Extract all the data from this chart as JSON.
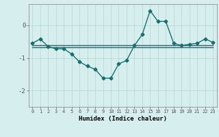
{
  "xlabel": "Humidex (Indice chaleur)",
  "ylabel": "",
  "background_color": "#d6eeee",
  "grid_color": "#b8d8d8",
  "line_color": "#1a6e6e",
  "x_values": [
    0,
    1,
    2,
    3,
    4,
    5,
    6,
    7,
    8,
    9,
    10,
    11,
    12,
    13,
    14,
    15,
    16,
    17,
    18,
    19,
    20,
    21,
    22,
    23
  ],
  "series1": [
    -0.55,
    -0.42,
    -0.65,
    -0.72,
    -0.72,
    -0.88,
    -1.12,
    -1.25,
    -1.35,
    -1.62,
    -1.62,
    -1.18,
    -1.08,
    -0.62,
    -0.28,
    0.45,
    0.12,
    0.12,
    -0.55,
    -0.62,
    -0.58,
    -0.55,
    -0.42,
    -0.52
  ],
  "flat_line": [
    -0.6,
    -0.6,
    -0.6,
    -0.6,
    -0.6,
    -0.6,
    -0.6,
    -0.6,
    -0.6,
    -0.6,
    -0.6,
    -0.6,
    -0.6,
    -0.6,
    -0.6,
    -0.6,
    -0.6,
    -0.6,
    -0.6,
    -0.6,
    -0.6,
    -0.6,
    -0.6,
    -0.6
  ],
  "flat_line2": [
    -0.68,
    -0.68,
    -0.68,
    -0.68,
    -0.68,
    -0.68,
    -0.68,
    -0.68,
    -0.68,
    -0.68,
    -0.68,
    -0.68,
    -0.68,
    -0.68,
    -0.68,
    -0.68,
    -0.68,
    -0.68,
    -0.68,
    -0.68,
    -0.68,
    -0.68,
    -0.68,
    -0.68
  ],
  "ylim": [
    -2.5,
    0.65
  ],
  "xlim": [
    -0.5,
    23.5
  ],
  "yticks": [
    0,
    -1,
    -2
  ],
  "xticks": [
    0,
    1,
    2,
    3,
    4,
    5,
    6,
    7,
    8,
    9,
    10,
    11,
    12,
    13,
    14,
    15,
    16,
    17,
    18,
    19,
    20,
    21,
    22,
    23
  ],
  "xtick_labels": [
    "0",
    "1",
    "2",
    "3",
    "4",
    "5",
    "6",
    "7",
    "8",
    "9",
    "10",
    "11",
    "12",
    "13",
    "14",
    "15",
    "16",
    "17",
    "18",
    "19",
    "20",
    "21",
    "22",
    "23"
  ],
  "marker": "D",
  "markersize": 2.5,
  "linewidth": 1.0
}
